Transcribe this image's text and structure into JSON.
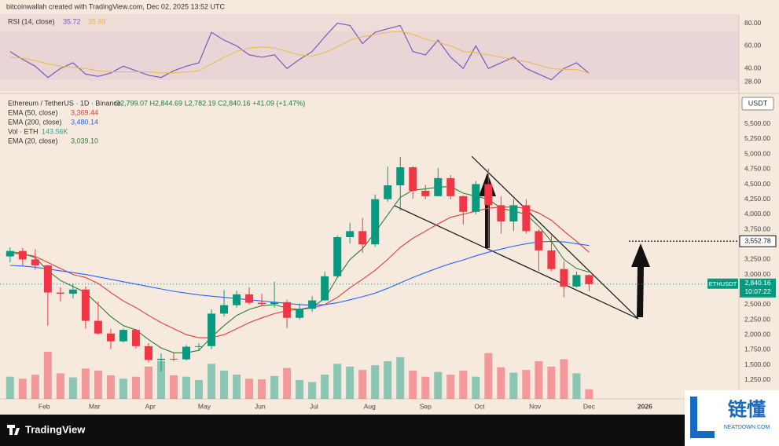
{
  "header": "bitcoinwallah created with TradingView.com, Dec 02, 2025 13:52 UTC",
  "footer": "TradingView",
  "watermark": {
    "title": "链懂",
    "site": "NEATDOWN.COM"
  },
  "chart_data": [
    {
      "type": "line",
      "title": "RSI (14, close)",
      "xlim": [
        -0.8,
        57.9
      ],
      "ylim": [
        20,
        88
      ],
      "yticks": [
        {
          "value": 80,
          "label": "80.00"
        },
        {
          "value": 60,
          "label": "60.00"
        },
        {
          "value": 40,
          "label": "40.00"
        },
        {
          "value": 28,
          "label": "28.00"
        }
      ],
      "series": [
        {
          "color": "#7e57c2",
          "values": [
            55,
            48,
            42,
            32,
            40,
            45,
            35,
            33,
            36,
            42,
            38,
            34,
            32,
            38,
            42,
            45,
            72,
            65,
            60,
            52,
            50,
            52,
            40,
            48,
            55,
            68,
            80,
            78,
            62,
            72,
            75,
            78,
            55,
            52,
            65,
            50,
            40,
            60,
            40,
            45,
            50,
            40,
            35,
            30,
            40,
            45,
            35.72
          ]
        },
        {
          "color": "#e9b949",
          "values": [
            50,
            49,
            47,
            44,
            42,
            41,
            40,
            38,
            37,
            37,
            37,
            37,
            36,
            36,
            37,
            38,
            44,
            50,
            55,
            58,
            59,
            58,
            55,
            52,
            51,
            54,
            59,
            65,
            68,
            70,
            72,
            73,
            70,
            66,
            63,
            60,
            55,
            54,
            52,
            50,
            48,
            46,
            43,
            40,
            39,
            39,
            35.89
          ]
        }
      ]
    },
    {
      "type": "candlestick",
      "title": "Ethereum / TetherUS · 1D · Binance",
      "ohlc_text": "O2,799.07 H2,844.69 L2,782.19 C2,840.16 +41.09 (+1.47%)",
      "currency": "USDT",
      "up_color": "#089981",
      "down_color": "#f23645",
      "xlim": [
        -0.8,
        57.9
      ],
      "ylim": [
        934,
        5967
      ],
      "xticks": [
        {
          "value": 2.71,
          "label": "Feb"
        },
        {
          "value": 6.71,
          "label": "Mar"
        },
        {
          "value": 11.14,
          "label": "Apr"
        },
        {
          "value": 15.43,
          "label": "May"
        },
        {
          "value": 19.86,
          "label": "Jun"
        },
        {
          "value": 24.14,
          "label": "Jul"
        },
        {
          "value": 28.57,
          "label": "Aug"
        },
        {
          "value": 33,
          "label": "Sep"
        },
        {
          "value": 37.29,
          "label": "Oct"
        },
        {
          "value": 41.71,
          "label": "Nov"
        },
        {
          "value": 46,
          "label": "Dec"
        },
        {
          "value": 50.43,
          "label": "2026"
        }
      ],
      "yticks": [
        {
          "value": 1250,
          "label": "1,250.00"
        },
        {
          "value": 1500,
          "label": "1,500.00"
        },
        {
          "value": 1750,
          "label": "1,750.00"
        },
        {
          "value": 2000,
          "label": "2,000.00"
        },
        {
          "value": 2250,
          "label": "2,250.00"
        },
        {
          "value": 2500,
          "label": "2,500.00"
        },
        {
          "value": 2750,
          "label": "2,750.00"
        },
        {
          "value": 3000,
          "label": "3,000.00"
        },
        {
          "value": 3250,
          "label": "3,250.00"
        },
        {
          "value": 3500,
          "label": "3,500.00"
        },
        {
          "value": 3750,
          "label": "3,750.00"
        },
        {
          "value": 4000,
          "label": "4,000.00"
        },
        {
          "value": 4250,
          "label": "4,250.00"
        },
        {
          "value": 4500,
          "label": "4,500.00"
        },
        {
          "value": 4750,
          "label": "4,750.00"
        },
        {
          "value": 5000,
          "label": "5,000.00"
        },
        {
          "value": 5250,
          "label": "5,250.00"
        },
        {
          "value": 5500,
          "label": "5,500.00"
        }
      ],
      "open": [
        3300,
        3390,
        3250,
        3150,
        2700,
        2680,
        2750,
        2230,
        2020,
        1890,
        2080,
        1810,
        1580,
        1600,
        1590,
        1800,
        1810,
        2350,
        2490,
        2670,
        2530,
        2510,
        2540,
        2280,
        2430,
        2570,
        2970,
        3620,
        3720,
        3500,
        4250,
        4480,
        4780,
        4390,
        4300,
        4600,
        4300,
        4040,
        4500,
        4150,
        3880,
        4150,
        3720,
        3400,
        3090,
        2800,
        2990
      ],
      "high": [
        3450,
        3440,
        3420,
        3160,
        2790,
        2850,
        2800,
        2550,
        2100,
        2100,
        2100,
        1860,
        1690,
        1700,
        1830,
        1860,
        2420,
        2740,
        2730,
        2790,
        2680,
        2880,
        2580,
        2520,
        2640,
        3050,
        3650,
        3860,
        3940,
        4330,
        4790,
        4950,
        4800,
        4490,
        4770,
        4650,
        4310,
        4550,
        4760,
        4300,
        4250,
        4250,
        3750,
        3650,
        3220,
        3050,
        3000
      ],
      "low": [
        3200,
        3150,
        3080,
        2150,
        2550,
        2600,
        2100,
        2000,
        1760,
        1870,
        1770,
        1540,
        1390,
        1560,
        1570,
        1750,
        1760,
        2300,
        2450,
        2500,
        2480,
        2450,
        2110,
        2250,
        2380,
        2560,
        2950,
        3510,
        3360,
        3460,
        4210,
        4060,
        4260,
        4250,
        4300,
        4250,
        3830,
        4000,
        3440,
        3680,
        3720,
        3680,
        3060,
        3050,
        2620,
        2780,
        2720
      ],
      "close": [
        3390,
        3250,
        3150,
        2700,
        2680,
        2750,
        2230,
        2020,
        1890,
        2080,
        1810,
        1580,
        1600,
        1590,
        1800,
        1810,
        2350,
        2490,
        2670,
        2530,
        2510,
        2540,
        2280,
        2430,
        2570,
        2970,
        3620,
        3720,
        3500,
        4250,
        4480,
        4780,
        4390,
        4300,
        4600,
        4300,
        4040,
        4500,
        4150,
        3880,
        4150,
        3720,
        3400,
        3090,
        2800,
        2990,
        2840.16
      ],
      "lines": [
        {
          "name": "EMA (50, close)",
          "color": "#e53935",
          "value_label": "3,369.44",
          "values": [
            3350,
            3340,
            3300,
            3200,
            3100,
            3000,
            2950,
            2850,
            2700,
            2560,
            2450,
            2320,
            2200,
            2100,
            2000,
            1950,
            1950,
            2000,
            2100,
            2200,
            2280,
            2350,
            2400,
            2420,
            2440,
            2500,
            2620,
            2780,
            2920,
            3070,
            3250,
            3450,
            3600,
            3720,
            3840,
            3950,
            4000,
            4050,
            4100,
            4120,
            4120,
            4100,
            4020,
            3900,
            3720,
            3550,
            3369.44
          ]
        },
        {
          "name": "EMA (200, close)",
          "color": "#2962ff",
          "value_label": "3,480.14",
          "values": [
            3150,
            3140,
            3120,
            3090,
            3060,
            3030,
            3000,
            2960,
            2920,
            2880,
            2840,
            2800,
            2760,
            2720,
            2690,
            2660,
            2640,
            2620,
            2600,
            2580,
            2560,
            2540,
            2520,
            2500,
            2490,
            2500,
            2530,
            2580,
            2630,
            2690,
            2770,
            2860,
            2950,
            3030,
            3110,
            3180,
            3240,
            3310,
            3370,
            3420,
            3470,
            3510,
            3540,
            3550,
            3540,
            3510,
            3480.14
          ]
        },
        {
          "name": "EMA (20, close)",
          "color": "#2e7d32",
          "value_label": "3,039.10",
          "values": [
            3380,
            3350,
            3280,
            3060,
            2900,
            2800,
            2700,
            2500,
            2300,
            2150,
            2080,
            1920,
            1780,
            1700,
            1700,
            1740,
            1960,
            2150,
            2320,
            2420,
            2480,
            2500,
            2440,
            2420,
            2460,
            2600,
            2950,
            3250,
            3430,
            3700,
            3990,
            4280,
            4400,
            4420,
            4450,
            4460,
            4350,
            4300,
            4250,
            4100,
            4050,
            4000,
            3800,
            3550,
            3250,
            3100,
            3039.1
          ]
        }
      ],
      "volume": {
        "name": "Vol · ETH",
        "color": "#26a69a",
        "value_label": "143.56K",
        "values": [
          330,
          300,
          360,
          700,
          380,
          320,
          450,
          420,
          350,
          300,
          330,
          480,
          560,
          350,
          330,
          280,
          520,
          420,
          360,
          300,
          290,
          340,
          460,
          280,
          250,
          360,
          520,
          480,
          430,
          500,
          560,
          620,
          420,
          330,
          400,
          360,
          420,
          330,
          680,
          470,
          390,
          430,
          560,
          480,
          590,
          380,
          143.56
        ]
      },
      "target": {
        "value": 3552.78,
        "label": "3,552.78"
      },
      "last_price": {
        "value": 2840.16,
        "label": "2,840.16",
        "symbol": "ETHUSDT",
        "countdown": "10:07:22"
      }
    }
  ]
}
